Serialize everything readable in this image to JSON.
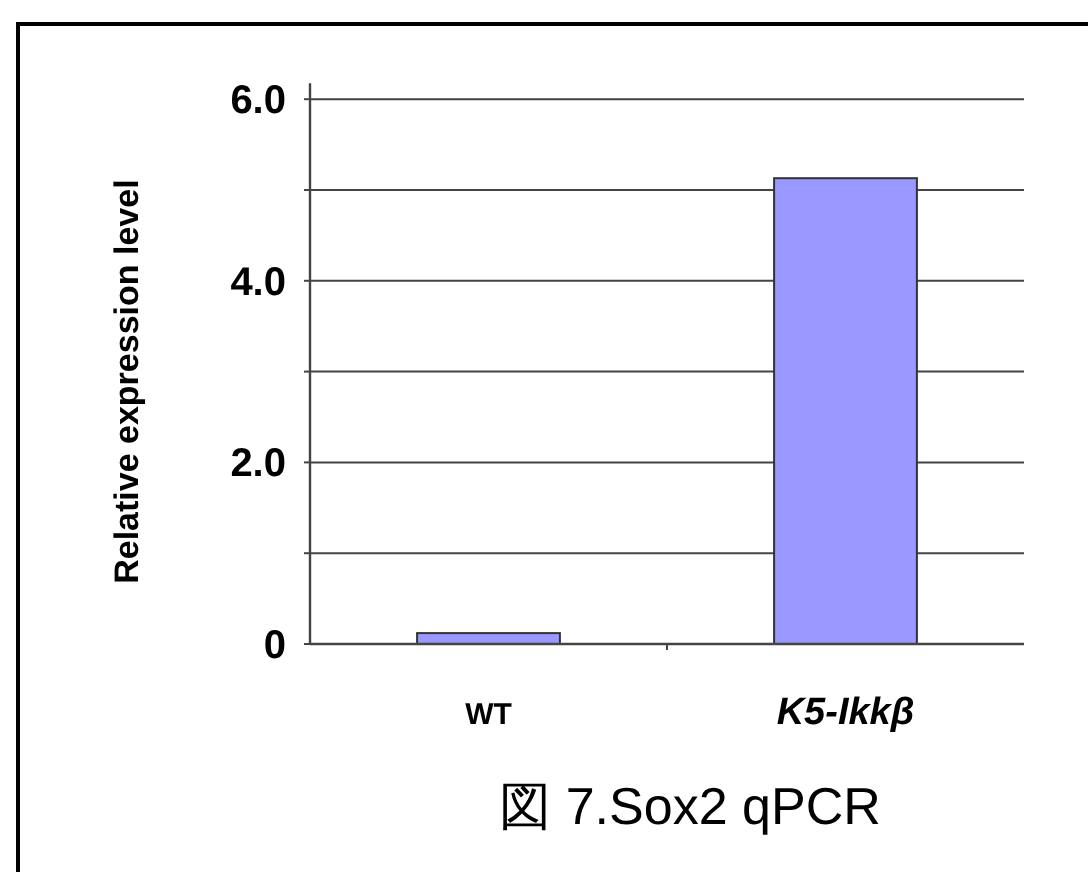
{
  "chart_data": {
    "type": "bar",
    "title": "図 7.Sox2 qPCR",
    "ylabel": "Relative expression level",
    "categories": [
      "WT",
      "K5-Ikkβ"
    ],
    "values": [
      0.12,
      5.13
    ],
    "color": "#9999ff",
    "ylim": [
      0,
      6
    ],
    "yticks": [
      {
        "value": 0,
        "label": "0"
      },
      {
        "value": 1,
        "label": null
      },
      {
        "value": 2,
        "label": "2.0"
      },
      {
        "value": 3,
        "label": null
      },
      {
        "value": 4,
        "label": "4.0"
      },
      {
        "value": 5,
        "label": null
      },
      {
        "value": 6,
        "label": "6.0"
      }
    ],
    "grid": "y"
  }
}
